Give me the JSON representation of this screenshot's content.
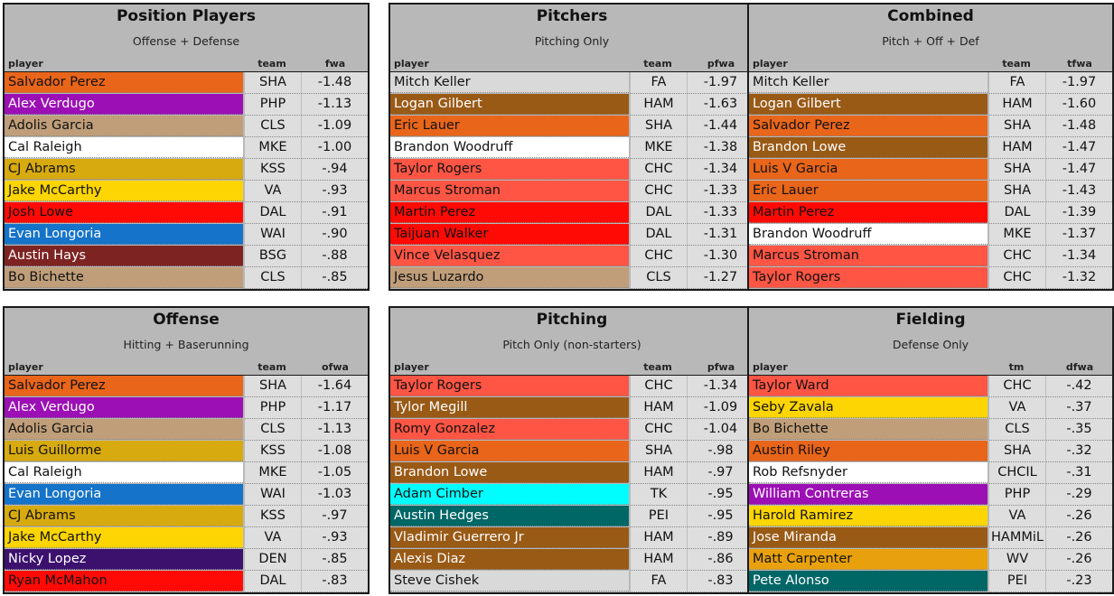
{
  "panels": [
    {
      "title": "Position Players",
      "subtitle": "Offense + Defense",
      "headers": {
        "player": "player",
        "team": "team",
        "val": "fwa"
      },
      "rows": [
        {
          "name": "Salvador Perez",
          "team": "SHA",
          "val": "-1.48",
          "bg": "#e8651a",
          "fg": "#111111"
        },
        {
          "name": "Alex Verdugo",
          "team": "PHP",
          "val": "-1.13",
          "bg": "#9b0fb5",
          "fg": "#ffffff"
        },
        {
          "name": "Adolis Garcia",
          "team": "CLS",
          "val": "-1.09",
          "bg": "#bf9e79",
          "fg": "#111111"
        },
        {
          "name": "Cal Raleigh",
          "team": "MKE",
          "val": "-1.00",
          "bg": "#ffffff",
          "fg": "#111111"
        },
        {
          "name": "CJ Abrams",
          "team": "KSS",
          "val": "-.94",
          "bg": "#d7aa0f",
          "fg": "#111111"
        },
        {
          "name": "Jake McCarthy",
          "team": "VA",
          "val": "-.93",
          "bg": "#fcd502",
          "fg": "#111111"
        },
        {
          "name": "Josh Lowe",
          "team": "DAL",
          "val": "-.91",
          "bg": "#ff0a05",
          "fg": "#111111"
        },
        {
          "name": "Evan Longoria",
          "team": "WAI",
          "val": "-.90",
          "bg": "#1573c9",
          "fg": "#ffffff"
        },
        {
          "name": "Austin Hays",
          "team": "BSG",
          "val": "-.88",
          "bg": "#7d2423",
          "fg": "#ffffff"
        },
        {
          "name": "Bo Bichette",
          "team": "CLS",
          "val": "-.85",
          "bg": "#bf9e79",
          "fg": "#111111"
        }
      ]
    },
    {
      "title": "Pitchers",
      "subtitle": "Pitching Only",
      "headers": {
        "player": "player",
        "team": "team",
        "val": "pfwa"
      },
      "rows": [
        {
          "name": "Mitch Keller",
          "team": "FA",
          "val": "-1.97",
          "bg": "#d9d9d9",
          "fg": "#111111"
        },
        {
          "name": "Logan Gilbert",
          "team": "HAM",
          "val": "-1.63",
          "bg": "#995a16",
          "fg": "#ffffff"
        },
        {
          "name": "Eric Lauer",
          "team": "SHA",
          "val": "-1.44",
          "bg": "#e8651a",
          "fg": "#111111"
        },
        {
          "name": "Brandon Woodruff",
          "team": "MKE",
          "val": "-1.38",
          "bg": "#ffffff",
          "fg": "#111111"
        },
        {
          "name": "Taylor Rogers",
          "team": "CHC",
          "val": "-1.34",
          "bg": "#fe5544",
          "fg": "#111111"
        },
        {
          "name": "Marcus Stroman",
          "team": "CHC",
          "val": "-1.33",
          "bg": "#fe5544",
          "fg": "#111111"
        },
        {
          "name": "Martin Perez",
          "team": "DAL",
          "val": "-1.33",
          "bg": "#ff0a05",
          "fg": "#111111"
        },
        {
          "name": "Taijuan Walker",
          "team": "DAL",
          "val": "-1.31",
          "bg": "#ff0a05",
          "fg": "#111111"
        },
        {
          "name": "Vince Velasquez",
          "team": "CHC",
          "val": "-1.30",
          "bg": "#fe5544",
          "fg": "#111111"
        },
        {
          "name": "Jesus Luzardo",
          "team": "CLS",
          "val": "-1.27",
          "bg": "#bf9e79",
          "fg": "#111111"
        }
      ]
    },
    {
      "title": "Combined",
      "subtitle": "Pitch + Off + Def",
      "headers": {
        "player": "player",
        "team": "team",
        "val": "tfwa"
      },
      "rows": [
        {
          "name": "Mitch Keller",
          "team": "FA",
          "val": "-1.97",
          "bg": "#d9d9d9",
          "fg": "#111111"
        },
        {
          "name": "Logan Gilbert",
          "team": "HAM",
          "val": "-1.60",
          "bg": "#995a16",
          "fg": "#ffffff"
        },
        {
          "name": "Salvador Perez",
          "team": "SHA",
          "val": "-1.48",
          "bg": "#e8651a",
          "fg": "#111111"
        },
        {
          "name": "Brandon Lowe",
          "team": "HAM",
          "val": "-1.47",
          "bg": "#995a16",
          "fg": "#ffffff"
        },
        {
          "name": "Luis V Garcia",
          "team": "SHA",
          "val": "-1.47",
          "bg": "#e8651a",
          "fg": "#111111"
        },
        {
          "name": "Eric Lauer",
          "team": "SHA",
          "val": "-1.43",
          "bg": "#e8651a",
          "fg": "#111111"
        },
        {
          "name": "Martin Perez",
          "team": "DAL",
          "val": "-1.39",
          "bg": "#ff0a05",
          "fg": "#111111"
        },
        {
          "name": "Brandon Woodruff",
          "team": "MKE",
          "val": "-1.37",
          "bg": "#ffffff",
          "fg": "#111111"
        },
        {
          "name": "Marcus Stroman",
          "team": "CHC",
          "val": "-1.34",
          "bg": "#fe5544",
          "fg": "#111111"
        },
        {
          "name": "Taylor Rogers",
          "team": "CHC",
          "val": "-1.32",
          "bg": "#fe5544",
          "fg": "#111111"
        }
      ]
    },
    {
      "title": "Offense",
      "subtitle": "Hitting + Baserunning",
      "headers": {
        "player": "player",
        "team": "team",
        "val": "ofwa"
      },
      "rows": [
        {
          "name": "Salvador Perez",
          "team": "SHA",
          "val": "-1.64",
          "bg": "#e8651a",
          "fg": "#111111"
        },
        {
          "name": "Alex Verdugo",
          "team": "PHP",
          "val": "-1.17",
          "bg": "#9b0fb5",
          "fg": "#ffffff"
        },
        {
          "name": "Adolis Garcia",
          "team": "CLS",
          "val": "-1.13",
          "bg": "#bf9e79",
          "fg": "#111111"
        },
        {
          "name": "Luis Guillorme",
          "team": "KSS",
          "val": "-1.08",
          "bg": "#d7aa0f",
          "fg": "#111111"
        },
        {
          "name": "Cal Raleigh",
          "team": "MKE",
          "val": "-1.05",
          "bg": "#ffffff",
          "fg": "#111111"
        },
        {
          "name": "Evan Longoria",
          "team": "WAI",
          "val": "-1.03",
          "bg": "#1573c9",
          "fg": "#ffffff"
        },
        {
          "name": "CJ Abrams",
          "team": "KSS",
          "val": "-.97",
          "bg": "#d7aa0f",
          "fg": "#111111"
        },
        {
          "name": "Jake McCarthy",
          "team": "VA",
          "val": "-.93",
          "bg": "#fcd502",
          "fg": "#111111"
        },
        {
          "name": "Nicky Lopez",
          "team": "DEN",
          "val": "-.85",
          "bg": "#3c116e",
          "fg": "#ffffff"
        },
        {
          "name": "Ryan McMahon",
          "team": "DAL",
          "val": "-.83",
          "bg": "#ff0a05",
          "fg": "#111111"
        }
      ]
    },
    {
      "title": "Pitching",
      "subtitle": "Pitch Only (non-starters)",
      "headers": {
        "player": "player",
        "team": "team",
        "val": "pfwa"
      },
      "rows": [
        {
          "name": "Taylor Rogers",
          "team": "CHC",
          "val": "-1.34",
          "bg": "#fe5544",
          "fg": "#111111"
        },
        {
          "name": "Tylor Megill",
          "team": "HAM",
          "val": "-1.09",
          "bg": "#995a16",
          "fg": "#ffffff"
        },
        {
          "name": "Romy Gonzalez",
          "team": "CHC",
          "val": "-1.04",
          "bg": "#fe5544",
          "fg": "#111111"
        },
        {
          "name": "Luis V Garcia",
          "team": "SHA",
          "val": "-.98",
          "bg": "#e8651a",
          "fg": "#111111"
        },
        {
          "name": "Brandon Lowe",
          "team": "HAM",
          "val": "-.97",
          "bg": "#995a16",
          "fg": "#ffffff"
        },
        {
          "name": "Adam Cimber",
          "team": "TK",
          "val": "-.95",
          "bg": "#00fefe",
          "fg": "#111111"
        },
        {
          "name": "Austin Hedges",
          "team": "PEI",
          "val": "-.95",
          "bg": "#006666",
          "fg": "#ffffff"
        },
        {
          "name": "Vladimir Guerrero Jr",
          "team": "HAM",
          "val": "-.89",
          "bg": "#995a16",
          "fg": "#ffffff"
        },
        {
          "name": "Alexis Diaz",
          "team": "HAM",
          "val": "-.86",
          "bg": "#995a16",
          "fg": "#ffffff"
        },
        {
          "name": "Steve Cishek",
          "team": "FA",
          "val": "-.83",
          "bg": "#d9d9d9",
          "fg": "#111111"
        }
      ]
    },
    {
      "title": "Fielding",
      "subtitle": "Defense Only",
      "headers": {
        "player": "player",
        "team": "tm",
        "val": "dfwa"
      },
      "rows": [
        {
          "name": "Taylor Ward",
          "team": "CHC",
          "val": "-.42",
          "bg": "#fe5544",
          "fg": "#111111"
        },
        {
          "name": "Seby Zavala",
          "team": "VA",
          "val": "-.37",
          "bg": "#fcd502",
          "fg": "#111111"
        },
        {
          "name": "Bo Bichette",
          "team": "CLS",
          "val": "-.35",
          "bg": "#bf9e79",
          "fg": "#111111"
        },
        {
          "name": "Austin Riley",
          "team": "SHA",
          "val": "-.32",
          "bg": "#e8651a",
          "fg": "#111111"
        },
        {
          "name": "Rob Refsnyder",
          "team": "CHCIL",
          "val": "-.31",
          "bg": "#ffffff",
          "fg": "#111111"
        },
        {
          "name": "William Contreras",
          "team": "PHP",
          "val": "-.29",
          "bg": "#9b0fb5",
          "fg": "#ffffff"
        },
        {
          "name": "Harold Ramirez",
          "team": "VA",
          "val": "-.26",
          "bg": "#fcd502",
          "fg": "#111111"
        },
        {
          "name": "Jose Miranda",
          "team": "HAMMiL",
          "val": "-.26",
          "bg": "#995a16",
          "fg": "#ffffff"
        },
        {
          "name": "Matt Carpenter",
          "team": "WV",
          "val": "-.26",
          "bg": "#e8a10c",
          "fg": "#111111"
        },
        {
          "name": "Pete Alonso",
          "team": "PEI",
          "val": "-.23",
          "bg": "#006666",
          "fg": "#ffffff"
        }
      ]
    }
  ]
}
